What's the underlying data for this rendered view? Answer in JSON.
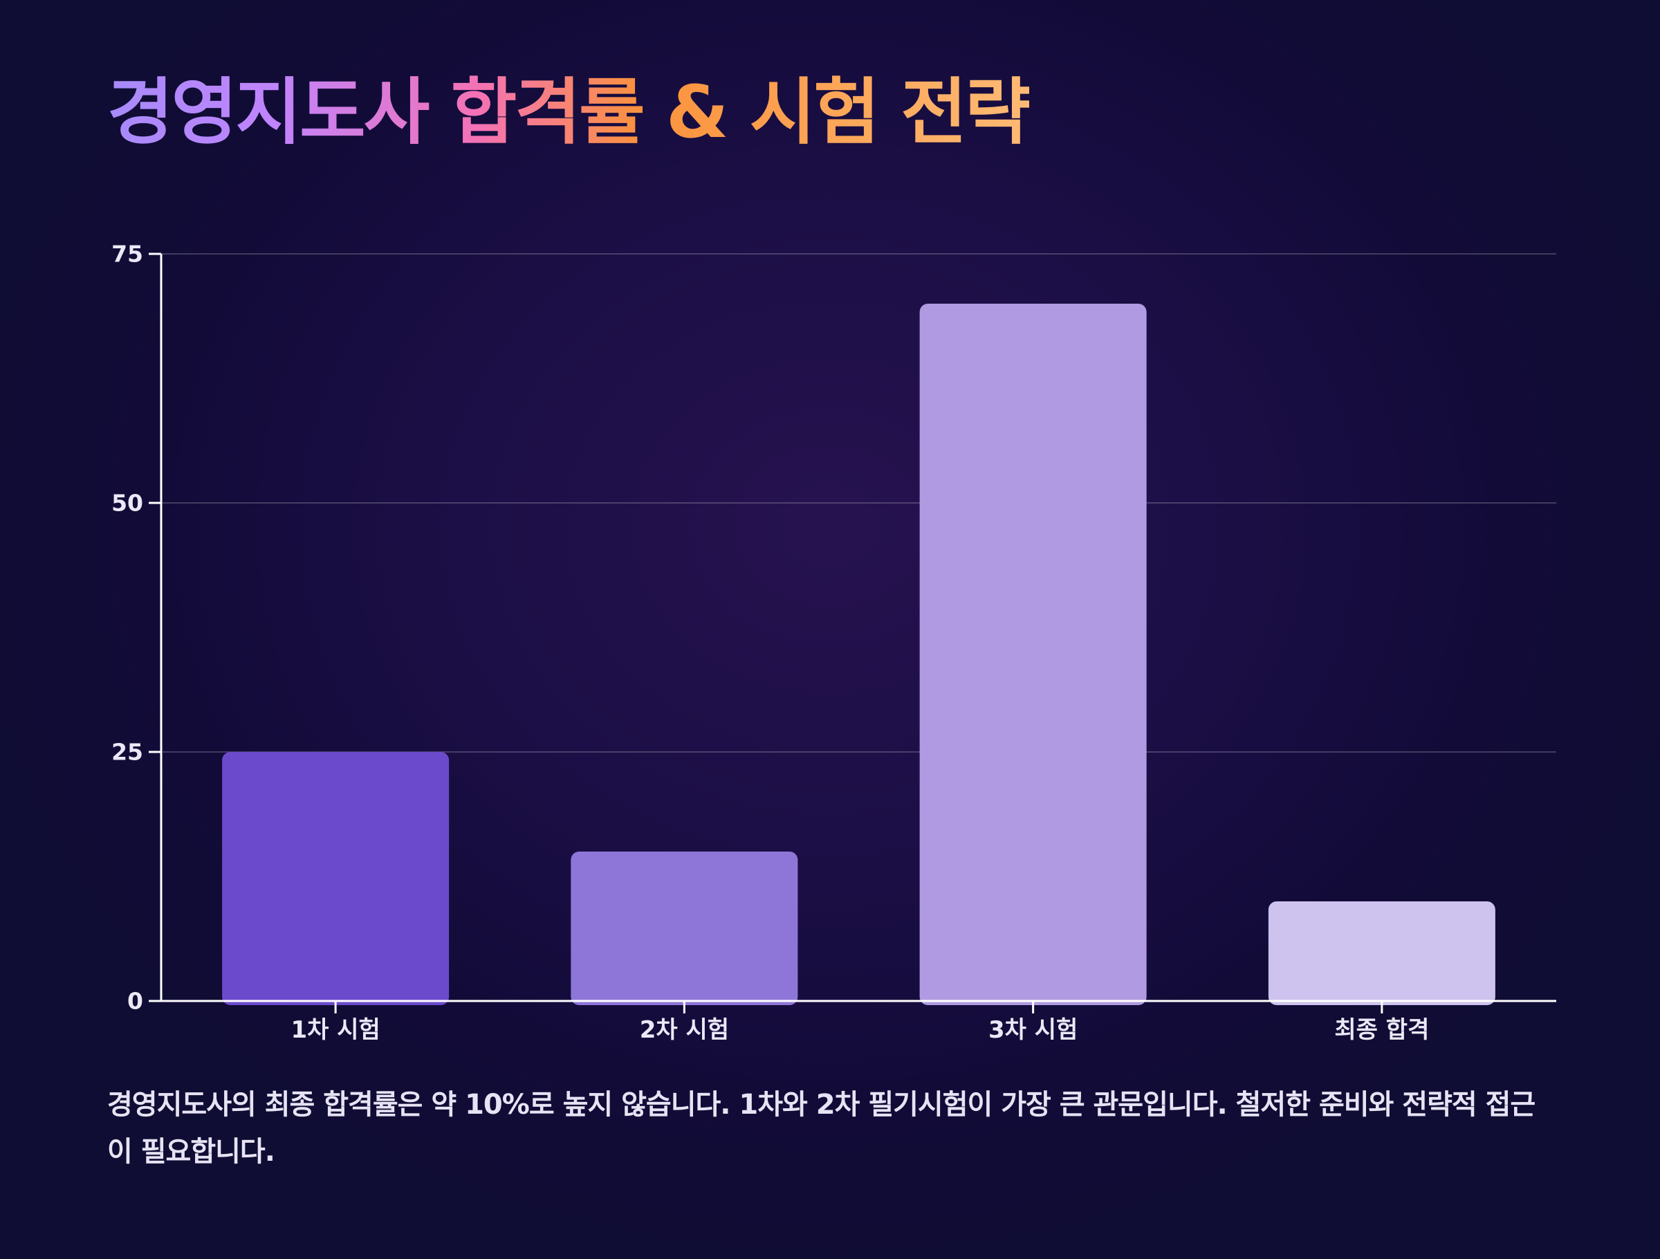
{
  "title": "경영지도사 합격률 & 시험 전략",
  "chart_data": {
    "type": "bar",
    "categories": [
      "1차 시험",
      "2차 시험",
      "3차 시험",
      "최종 합격"
    ],
    "values": [
      25,
      15,
      70,
      10
    ],
    "colors": [
      "#6b4bcc",
      "#8e76d8",
      "#b09be2",
      "#cdc3ee"
    ],
    "ylim": [
      0,
      75
    ],
    "yticks": [
      0,
      25,
      50,
      75
    ],
    "grid": true,
    "xlabel": "",
    "ylabel": ""
  },
  "caption": "경영지도사의 최종 합격률은 약 10%로 높지 않습니다. 1차와 2차 필기시험이 가장 큰 관문입니다. 철저한 준비와 전략적 접근이 필요합니다."
}
